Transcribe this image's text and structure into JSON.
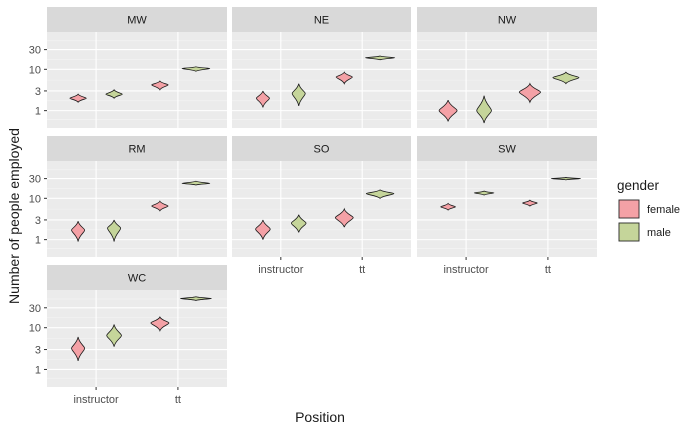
{
  "chart_data": {
    "type": "violin",
    "xlabel": "Position",
    "ylabel": "Number of people employed",
    "x_categories": [
      "instructor",
      "tt"
    ],
    "groups": [
      "female",
      "male"
    ],
    "y_scale": "log10",
    "y_ticks": [
      1,
      3,
      10,
      30
    ],
    "y_tick_labels": [
      "1",
      "3",
      "10",
      "30"
    ],
    "y_range": [
      0.38,
      80
    ],
    "grid": true,
    "legend": {
      "title": "gender",
      "position": "right",
      "entries": [
        {
          "label": "female",
          "color": "#f4a1a6"
        },
        {
          "label": "male",
          "color": "#c5d59a"
        }
      ]
    },
    "panels": [
      {
        "name": "MW",
        "violins": [
          {
            "x": "instructor",
            "group": "female",
            "min": 1.6,
            "max": 2.5,
            "median": 2.0,
            "halfwidth": 0.1
          },
          {
            "x": "instructor",
            "group": "male",
            "min": 2.0,
            "max": 3.2,
            "median": 2.5,
            "halfwidth": 0.1
          },
          {
            "x": "tt",
            "group": "female",
            "min": 3.2,
            "max": 5.2,
            "median": 4.2,
            "halfwidth": 0.1
          },
          {
            "x": "tt",
            "group": "male",
            "min": 9.0,
            "max": 11.5,
            "median": 10.5,
            "halfwidth": 0.17
          }
        ]
      },
      {
        "name": "NE",
        "violins": [
          {
            "x": "instructor",
            "group": "female",
            "min": 1.2,
            "max": 3.0,
            "median": 2.0,
            "halfwidth": 0.08
          },
          {
            "x": "instructor",
            "group": "male",
            "min": 1.3,
            "max": 4.5,
            "median": 2.6,
            "halfwidth": 0.08
          },
          {
            "x": "tt",
            "group": "female",
            "min": 4.5,
            "max": 8.5,
            "median": 6.5,
            "halfwidth": 0.1
          },
          {
            "x": "tt",
            "group": "male",
            "min": 17,
            "max": 21,
            "median": 19,
            "halfwidth": 0.18
          }
        ]
      },
      {
        "name": "NW",
        "violins": [
          {
            "x": "instructor",
            "group": "female",
            "min": 0.55,
            "max": 1.8,
            "median": 1.0,
            "halfwidth": 0.11
          },
          {
            "x": "instructor",
            "group": "male",
            "min": 0.5,
            "max": 2.3,
            "median": 1.0,
            "halfwidth": 0.09
          },
          {
            "x": "tt",
            "group": "female",
            "min": 1.6,
            "max": 4.5,
            "median": 2.8,
            "halfwidth": 0.13
          },
          {
            "x": "tt",
            "group": "male",
            "min": 4.5,
            "max": 8.5,
            "median": 6.3,
            "halfwidth": 0.16
          }
        ]
      },
      {
        "name": "RM",
        "violins": [
          {
            "x": "instructor",
            "group": "female",
            "min": 0.9,
            "max": 2.8,
            "median": 1.7,
            "halfwidth": 0.08
          },
          {
            "x": "instructor",
            "group": "male",
            "min": 0.9,
            "max": 3.0,
            "median": 1.9,
            "halfwidth": 0.08
          },
          {
            "x": "tt",
            "group": "female",
            "min": 5.0,
            "max": 8.5,
            "median": 6.5,
            "halfwidth": 0.1
          },
          {
            "x": "tt",
            "group": "male",
            "min": 21,
            "max": 26,
            "median": 23,
            "halfwidth": 0.17
          }
        ]
      },
      {
        "name": "SO",
        "violins": [
          {
            "x": "instructor",
            "group": "female",
            "min": 1.0,
            "max": 3.0,
            "median": 1.8,
            "halfwidth": 0.09
          },
          {
            "x": "instructor",
            "group": "male",
            "min": 1.5,
            "max": 4.0,
            "median": 2.5,
            "halfwidth": 0.09
          },
          {
            "x": "tt",
            "group": "female",
            "min": 2.0,
            "max": 5.5,
            "median": 3.4,
            "halfwidth": 0.11
          },
          {
            "x": "tt",
            "group": "male",
            "min": 10,
            "max": 16,
            "median": 13,
            "halfwidth": 0.17
          }
        ]
      },
      {
        "name": "SW",
        "violins": [
          {
            "x": "instructor",
            "group": "female",
            "min": 5.2,
            "max": 7.5,
            "median": 6.2,
            "halfwidth": 0.09
          },
          {
            "x": "instructor",
            "group": "male",
            "min": 12,
            "max": 15,
            "median": 13.5,
            "halfwidth": 0.12
          },
          {
            "x": "tt",
            "group": "female",
            "min": 6.5,
            "max": 9.0,
            "median": 7.7,
            "halfwidth": 0.09
          },
          {
            "x": "tt",
            "group": "male",
            "min": 28,
            "max": 32,
            "median": 30,
            "halfwidth": 0.18
          }
        ]
      },
      {
        "name": "WC",
        "violins": [
          {
            "x": "instructor",
            "group": "female",
            "min": 1.6,
            "max": 6.0,
            "median": 3.2,
            "halfwidth": 0.08
          },
          {
            "x": "instructor",
            "group": "male",
            "min": 3.5,
            "max": 12,
            "median": 6.5,
            "halfwidth": 0.09
          },
          {
            "x": "tt",
            "group": "female",
            "min": 8.5,
            "max": 18,
            "median": 13,
            "halfwidth": 0.11
          },
          {
            "x": "tt",
            "group": "male",
            "min": 45,
            "max": 55,
            "median": 50,
            "halfwidth": 0.19
          }
        ]
      }
    ]
  }
}
